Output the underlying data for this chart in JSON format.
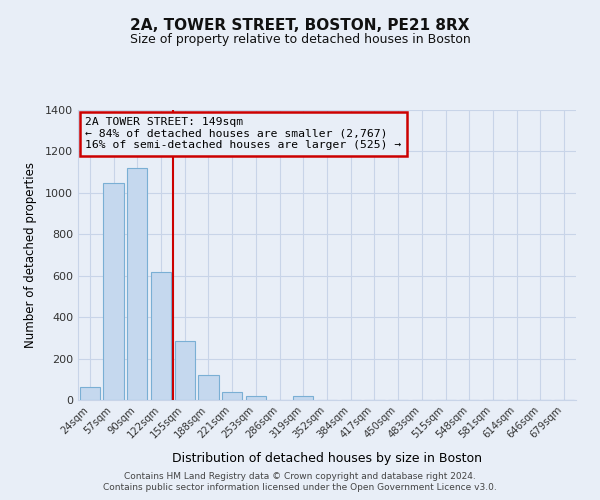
{
  "title": "2A, TOWER STREET, BOSTON, PE21 8RX",
  "subtitle": "Size of property relative to detached houses in Boston",
  "xlabel": "Distribution of detached houses by size in Boston",
  "ylabel": "Number of detached properties",
  "bar_labels": [
    "24sqm",
    "57sqm",
    "90sqm",
    "122sqm",
    "155sqm",
    "188sqm",
    "221sqm",
    "253sqm",
    "286sqm",
    "319sqm",
    "352sqm",
    "384sqm",
    "417sqm",
    "450sqm",
    "483sqm",
    "515sqm",
    "548sqm",
    "581sqm",
    "614sqm",
    "646sqm",
    "679sqm"
  ],
  "bar_values": [
    65,
    1050,
    1120,
    620,
    285,
    120,
    40,
    20,
    0,
    20,
    0,
    0,
    0,
    0,
    0,
    0,
    0,
    0,
    0,
    0,
    0
  ],
  "bar_color": "#c5d8ee",
  "bar_edge_color": "#7aafd4",
  "vline_x_index": 3.5,
  "vline_color": "#cc0000",
  "ylim": [
    0,
    1400
  ],
  "yticks": [
    0,
    200,
    400,
    600,
    800,
    1000,
    1200,
    1400
  ],
  "annotation_title": "2A TOWER STREET: 149sqm",
  "annotation_line1": "← 84% of detached houses are smaller (2,767)",
  "annotation_line2": "16% of semi-detached houses are larger (525) →",
  "annotation_box_color": "#cc0000",
  "background_color": "#e8eef7",
  "grid_color": "#c8d4e8",
  "footer1": "Contains HM Land Registry data © Crown copyright and database right 2024.",
  "footer2": "Contains public sector information licensed under the Open Government Licence v3.0."
}
